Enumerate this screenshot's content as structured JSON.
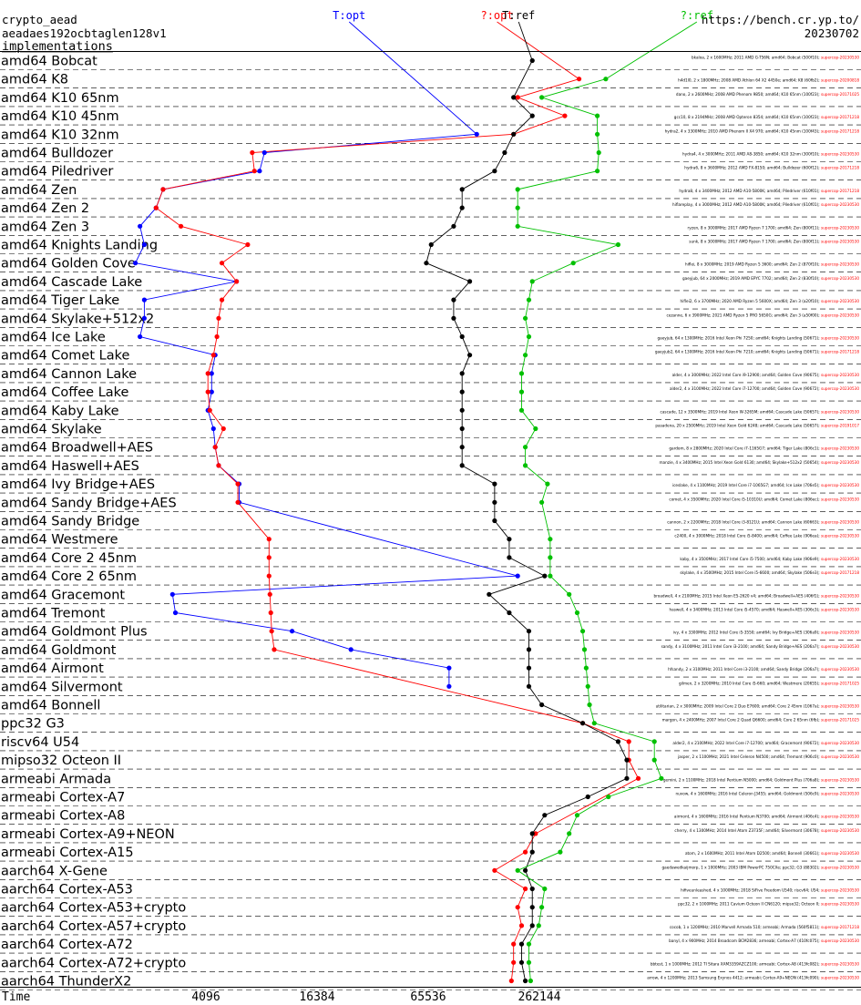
{
  "header": {
    "left_lines": [
      "crypto_aead",
      "aeadaes192ocbtaglen128v1"
    ],
    "implementations_link": "implementations",
    "right_lines": [
      "https://bench.cr.yp.to/",
      "20230702"
    ]
  },
  "chart_data": {
    "type": "line",
    "xlabel": "Time",
    "x_scale": "log2",
    "x_ticks": [
      4096,
      16384,
      65536,
      262144
    ],
    "series": [
      {
        "name": "T:opt",
        "color": "#0000ff"
      },
      {
        "name": "?:opt",
        "color": "#ff0000"
      },
      {
        "name": "T:ref",
        "color": "#000000"
      },
      {
        "name": "?:ref",
        "color": "#00c000"
      }
    ],
    "colors": {
      "grid": "#000000",
      "annotation_suffix": "#ff0000",
      "annotation_text": "#000000"
    },
    "categories": [
      {
        "label": "amd64 Bobcat",
        "t_opt": null,
        "q_opt": null,
        "t_ref": 240000,
        "q_ref": null
      },
      {
        "label": "amd64 K8",
        "t_opt": null,
        "q_opt": 430000,
        "t_ref": null,
        "q_ref": 600000
      },
      {
        "label": "amd64 K10 65nm",
        "t_opt": null,
        "q_opt": 200000,
        "t_ref": 190000,
        "q_ref": 270000
      },
      {
        "label": "amd64 K10 45nm",
        "t_opt": null,
        "q_opt": 360000,
        "t_ref": 240000,
        "q_ref": 540000
      },
      {
        "label": "amd64 K10 32nm",
        "t_opt": 120000,
        "q_opt": 190000,
        "t_ref": 190000,
        "q_ref": 540000
      },
      {
        "label": "amd64 Bulldozer",
        "t_opt": 8500,
        "q_opt": 7300,
        "t_ref": 170000,
        "q_ref": 550000
      },
      {
        "label": "amd64 Piledriver",
        "t_opt": 8000,
        "q_opt": 7500,
        "t_ref": 150000,
        "q_ref": 540000
      },
      {
        "label": "amd64 Zen",
        "t_opt": 2400,
        "q_opt": 2400,
        "t_ref": 100000,
        "q_ref": 200000
      },
      {
        "label": "amd64 Zen 2",
        "t_opt": 2200,
        "q_opt": 2200,
        "t_ref": 100000,
        "q_ref": 200000
      },
      {
        "label": "amd64 Zen 3",
        "t_opt": 1800,
        "q_opt": 3000,
        "t_ref": 90000,
        "q_ref": 200000
      },
      {
        "label": "amd64 Knights Landing",
        "t_opt": 1900,
        "q_opt": 6900,
        "t_ref": 68000,
        "q_ref": 700000
      },
      {
        "label": "amd64 Golden Cove",
        "t_opt": 1700,
        "q_opt": 5000,
        "t_ref": 64000,
        "q_ref": 400000
      },
      {
        "label": "amd64 Cascade Lake",
        "t_opt": 6000,
        "q_opt": 6000,
        "t_ref": 110000,
        "q_ref": 240000
      },
      {
        "label": "amd64 Tiger Lake",
        "t_opt": 1900,
        "q_opt": 5000,
        "t_ref": 90000,
        "q_ref": 230000
      },
      {
        "label": "amd64 Skylake+512x2",
        "t_opt": 1900,
        "q_opt": 4800,
        "t_ref": 90000,
        "q_ref": 220000
      },
      {
        "label": "amd64 Ice Lake",
        "t_opt": 1800,
        "q_opt": 4700,
        "t_ref": 100000,
        "q_ref": 230000
      },
      {
        "label": "amd64 Comet Lake",
        "t_opt": 4600,
        "q_opt": 4500,
        "t_ref": 110000,
        "q_ref": 220000
      },
      {
        "label": "amd64 Cannon Lake",
        "t_opt": 4400,
        "q_opt": 4200,
        "t_ref": 100000,
        "q_ref": 210000
      },
      {
        "label": "amd64 Coffee Lake",
        "t_opt": 4400,
        "q_opt": 4200,
        "t_ref": 100000,
        "q_ref": 210000
      },
      {
        "label": "amd64 Kaby Lake",
        "t_opt": 4200,
        "q_opt": 4300,
        "t_ref": 100000,
        "q_ref": 210000
      },
      {
        "label": "amd64 Skylake",
        "t_opt": 4500,
        "q_opt": 5100,
        "t_ref": 100000,
        "q_ref": 250000
      },
      {
        "label": "amd64 Broadwell+AES",
        "t_opt": 4600,
        "q_opt": 4600,
        "t_ref": 100000,
        "q_ref": 220000
      },
      {
        "label": "amd64 Haswell+AES",
        "t_opt": 4800,
        "q_opt": 4800,
        "t_ref": 100000,
        "q_ref": 220000
      },
      {
        "label": "amd64 Ivy Bridge+AES",
        "t_opt": 6200,
        "q_opt": 6100,
        "t_ref": 150000,
        "q_ref": 290000
      },
      {
        "label": "amd64 Sandy Bridge+AES",
        "t_opt": 6200,
        "q_opt": 6100,
        "t_ref": 150000,
        "q_ref": 270000
      },
      {
        "label": "amd64 Sandy Bridge",
        "t_opt": null,
        "q_opt": null,
        "t_ref": 150000,
        "q_ref": null
      },
      {
        "label": "amd64 Westmere",
        "t_opt": null,
        "q_opt": 9000,
        "t_ref": 180000,
        "q_ref": 300000
      },
      {
        "label": "amd64 Core 2 45nm",
        "t_opt": null,
        "q_opt": 9000,
        "t_ref": 180000,
        "q_ref": 300000
      },
      {
        "label": "amd64 Core 2 65nm",
        "t_opt": 200000,
        "q_opt": 9000,
        "t_ref": 280000,
        "q_ref": 300000
      },
      {
        "label": "amd64 Gracemont",
        "t_opt": 2700,
        "q_opt": 9100,
        "t_ref": 140000,
        "q_ref": 380000
      },
      {
        "label": "amd64 Tremont",
        "t_opt": 2800,
        "q_opt": 9200,
        "t_ref": 180000,
        "q_ref": 420000
      },
      {
        "label": "amd64 Goldmont Plus",
        "t_opt": 12000,
        "q_opt": 9300,
        "t_ref": 230000,
        "q_ref": 450000
      },
      {
        "label": "amd64 Goldmont",
        "t_opt": 25000,
        "q_opt": 9600,
        "t_ref": 230000,
        "q_ref": 460000
      },
      {
        "label": "amd64 Airmont",
        "t_opt": 85000,
        "q_opt": null,
        "t_ref": 230000,
        "q_ref": 470000
      },
      {
        "label": "amd64 Silvermont",
        "t_opt": 85000,
        "q_opt": null,
        "t_ref": 230000,
        "q_ref": 480000
      },
      {
        "label": "amd64 Bonnell",
        "t_opt": null,
        "q_opt": null,
        "t_ref": 270000,
        "q_ref": 490000
      },
      {
        "label": "ppc32 G3",
        "t_opt": null,
        "q_opt": 450000,
        "t_ref": 450000,
        "q_ref": 520000
      },
      {
        "label": "riscv64 U54",
        "t_opt": null,
        "q_opt": 800000,
        "t_ref": 700000,
        "q_ref": 1100000
      },
      {
        "label": "mipso32 Octeon II",
        "t_opt": null,
        "q_opt": 800000,
        "t_ref": 780000,
        "q_ref": 1100000
      },
      {
        "label": "armeabi Armada",
        "t_opt": null,
        "q_opt": 900000,
        "t_ref": 780000,
        "q_ref": 1200000
      },
      {
        "label": "armeabi Cortex-A7",
        "t_opt": null,
        "q_opt": null,
        "t_ref": 480000,
        "q_ref": 620000
      },
      {
        "label": "armeabi Cortex-A8",
        "t_opt": null,
        "q_opt": null,
        "t_ref": 280000,
        "q_ref": 420000
      },
      {
        "label": "armeabi Cortex-A9+NEON",
        "t_opt": null,
        "q_opt": 250000,
        "t_ref": 240000,
        "q_ref": 380000
      },
      {
        "label": "armeabi Cortex-A15",
        "t_opt": null,
        "q_opt": 220000,
        "t_ref": 240000,
        "q_ref": 340000
      },
      {
        "label": "aarch64 X-Gene",
        "t_opt": null,
        "q_opt": 150000,
        "t_ref": 220000,
        "q_ref": 200000
      },
      {
        "label": "aarch64 Cortex-A53",
        "t_opt": null,
        "q_opt": 220000,
        "t_ref": 240000,
        "q_ref": 280000
      },
      {
        "label": "aarch64 Cortex-A53+crypto",
        "t_opt": null,
        "q_opt": 200000,
        "t_ref": 240000,
        "q_ref": 270000
      },
      {
        "label": "aarch64 Cortex-A57+crypto",
        "t_opt": null,
        "q_opt": 210000,
        "t_ref": 240000,
        "q_ref": 260000
      },
      {
        "label": "aarch64 Cortex-A72",
        "t_opt": null,
        "q_opt": 190000,
        "t_ref": 210000,
        "q_ref": 230000
      },
      {
        "label": "aarch64 Cortex-A72+crypto",
        "t_opt": null,
        "q_opt": 190000,
        "t_ref": 210000,
        "q_ref": 230000
      },
      {
        "label": "aarch64 ThunderX2",
        "t_opt": null,
        "q_opt": 185000,
        "t_ref": 220000,
        "q_ref": 235000
      }
    ],
    "annotations": [
      {
        "text": "bkaloa, 2 x 1600MHz; 2011 AMD G-T56N; amd64; Bobcat (500f10);",
        "suffix": "supercop-20230530"
      },
      {
        "text": "h4d1l0, 2 x 1800MHz; 2008 AMD Athlon 64 X2 4450e; amd64; K8 (60fb2);",
        "suffix": "supercop-20200818"
      },
      {
        "text": "dano, 2 x 2600MHz; 2008 AMD Phenom 9850; amd64; K10 65nm (100f23);",
        "suffix": "supercop-20171025"
      },
      {
        "text": "gcc10, 8 x 2194MHz; 2008 AMD Opteron 8354; amd64; K10 65nm (100f23);",
        "suffix": "supercop-20171218"
      },
      {
        "text": "hydra2, 4 x 3300MHz; 2010 AMD Phenom II X4 970; amd64; K10 45nm (100f43);",
        "suffix": "supercop-20171218"
      },
      {
        "text": "hydra4, 4 x 3000MHz; 2011 AMD A8-3850; amd64; K10 32nm (300f10);",
        "suffix": "supercop-20230530"
      },
      {
        "text": "hydra6, 8 x 3600MHz; 2012 AMD FX-8150; amd64; Bulldozer (600f12);",
        "suffix": "supercop-20171218"
      },
      {
        "text": "hydra8, 4 x 3400MHz; 2012 AMD A10-5800K; amd64; Piledriver (610f01);",
        "suffix": "supercop-20171218"
      },
      {
        "text": "hiflareplay, 4 x 3000MHz; 2012 AMD A10-5800K; amd64; Piledriver (610f01);",
        "suffix": "supercop-20230530"
      },
      {
        "text": "ryzen, 8 x 3000MHz; 2017 AMD Ryzen 7 1700; amd64; Zen (800f11);",
        "suffix": "supercop-20230530"
      },
      {
        "text": "sunk, 8 x 3000MHz; 2017 AMD Ryzen 7 1700; amd64; Zen (800f11);",
        "suffix": "supercop-20230530"
      },
      {
        "text": "hiflei, 8 x 3000MHz; 2019 AMD Ryzen 5 3600; amd64; Zen 2 (870f10);",
        "suffix": "supercop-20230530"
      },
      {
        "text": "gaeyjub, 64 x 2000MHz; 2019 AMD EPYC 7702; amd64; Zen 2 (830f10);",
        "suffix": "supercop-20230530"
      },
      {
        "text": "hiflei2, 6 x 3700MHz; 2020 AMD Ryzen 5 5600X; amd64; Zen 3 (a20f10);",
        "suffix": "supercop-20230530"
      },
      {
        "text": "cezanne, 6 x 3900MHz; 2021 AMD Ryzen 5 PRO 5650G; amd64; Zen 3 (a50f00);",
        "suffix": "supercop-20230530"
      },
      {
        "text": "gaeyjub, 64 x 1300MHz; 2016 Intel Xeon Phi 7250; amd64; Knights Landing (50671);",
        "suffix": "supercop-20230530"
      },
      {
        "text": "gaeyjub2, 64 x 1300MHz; 2016 Intel Xeon Phi 7210; amd64; Knights Landing (50671);",
        "suffix": "supercop-20171218"
      },
      {
        "text": "alder, 4 x 3000MHz; 2022 Intel Core i9-12900; amd64; Golden Cove (90675);",
        "suffix": "supercop-20230530"
      },
      {
        "text": "alder2, 4 x 3100MHz; 2022 Intel Core i7-12700; amd64; Golden Cove (90672);",
        "suffix": "supercop-20230530"
      },
      {
        "text": "cascade, 12 x 3500MHz; 2019 Intel Xeon W-3265M; amd64; Cascade Lake (50657);",
        "suffix": "supercop-20230530"
      },
      {
        "text": "pasadena, 20 x 2500MHz; 2019 Intel Xeon Gold 6248; amd64; Cascade Lake (50657);",
        "suffix": "supercop-20191017"
      },
      {
        "text": "gardom, 8 x 2800MHz; 2020 Intel Core i7-1165G7; amd64; Tiger Lake (806c1);",
        "suffix": "supercop-20230530"
      },
      {
        "text": "manzie, 4 x 3400MHz; 2015 Intel Xeon Gold 6130; amd64; Skylake+512x2 (50654);",
        "suffix": "supercop-20230530"
      },
      {
        "text": "iceslake, 4 x 1100MHz; 2019 Intel Core i7-1065G7; amd64; Ice Lake (706e5);",
        "suffix": "supercop-20230530"
      },
      {
        "text": "comet, 4 x 3500MHz; 2020 Intel Core i5-10310U; amd64; Comet Lake (806ec);",
        "suffix": "supercop-20230530"
      },
      {
        "text": "cannon, 2 x 2200MHz; 2018 Intel Core i3-8121U; amd64; Cannon Lake (60663);",
        "suffix": "supercop-20230530"
      },
      {
        "text": "c2400, 4 x 3000MHz; 2018 Intel Core i5-8400; amd64; Coffee Lake (906ea);",
        "suffix": "supercop-20230530"
      },
      {
        "text": "kaby, 4 x 3500MHz; 2017 Intel Core i5-7500; amd64; Kaby Lake (906e9);",
        "suffix": "supercop-20230530"
      },
      {
        "text": "skylake, 4 x 3500MHz; 2015 Intel Core i5-6600; amd64; Skylake (506e3);",
        "suffix": "supercop-20171218"
      },
      {
        "text": "broadwell, 4 x 2100MHz; 2015 Intel Xeon E5-2620 v4; amd64; Broadwell+AES (406f1);",
        "suffix": "supercop-20230530"
      },
      {
        "text": "haswell, 4 x 3400MHz; 2013 Intel Core i5-4570; amd64; Haswell+AES (306c3);",
        "suffix": "supercop-20230530"
      },
      {
        "text": "ivy, 4 x 3300MHz; 2012 Intel Core i5-3550; amd64; Ivy Bridge+AES (306a9);",
        "suffix": "supercop-20230530"
      },
      {
        "text": "sandy, 4 x 3100MHz; 2011 Intel Core i3-2100; amd64; Sandy Bridge+AES (206a7);",
        "suffix": "supercop-20230530"
      },
      {
        "text": "hfsandy, 2 x 3100MHz; 2011 Intel Core i3-2100; amd64; Sandy Bridge (206a7);",
        "suffix": "supercop-20230530"
      },
      {
        "text": "gilmen, 2 x 3200MHz; 2010 Intel Core i5-660; amd64; Westmere (20655);",
        "suffix": "supercop-20171025"
      },
      {
        "text": "utilitarian, 2 x 3000MHz; 2009 Intel Core 2 Duo E7600; amd64; Core 2 45nm (1067a);",
        "suffix": "supercop-20230530"
      },
      {
        "text": "margon, 4 x 2400MHz; 2007 Intel Core 2 Quad Q6600; amd64; Core 2 65nm (6fb);",
        "suffix": "supercop-20171025"
      },
      {
        "text": "alder2, 4 x 2100MHz; 2022 Intel Core i7-12700; amd64; Gracemont (90672);",
        "suffix": "supercop-20230530"
      },
      {
        "text": "jasper, 2 x 1100MHz; 2021 Intel Celeron N4500; amd64; Tremont (906c0);",
        "suffix": "supercop-20230530"
      },
      {
        "text": "gemini, 2 x 1100MHz; 2018 Intel Pentium N5000; amd64; Goldmont Plus (706a8);",
        "suffix": "supercop-20230530"
      },
      {
        "text": "nuvow, 4 x 1600MHz; 2016 Intel Celeron J3455; amd64; Goldmont (506c9);",
        "suffix": "supercop-20230530"
      },
      {
        "text": "airmont, 4 x 1600MHz; 2016 Intel Pentium N3700; amd64; Airmont (406c4);",
        "suffix": "supercop-20230530"
      },
      {
        "text": "cherry, 4 x 1300MHz; 2014 Intel Atom Z3735F; amd64; Silvermont (30678);",
        "suffix": "supercop-20230530"
      },
      {
        "text": "atom, 2 x 1600MHz; 2011 Intel Atom D2500; amd64; Bonnell (30661);",
        "suffix": "supercop-20230530"
      },
      {
        "text": "gaedawedkaijmorp, 1 x 1000MHz; 2003 IBM PowerPC 750CXe; ppc32; G3 (88302);",
        "suffix": "supercop-20230530"
      },
      {
        "text": "hifiveunleashed, 4 x 1000MHz; 2018 SiFive Freedom U540; riscv64; U54;",
        "suffix": "supercop-20230530"
      },
      {
        "text": "ppc32, 2 x 1000MHz; 2011 Cavium Octeon II CN6120; mipso32; Octeon II;",
        "suffix": "supercop-20230530"
      },
      {
        "text": "cocob, 1 x 1200MHz; 2010 Marvell Armada 510; armeabi; Armada (560f5811);",
        "suffix": "supercop-20171218"
      },
      {
        "text": "banyl, 4 x 900MHz; 2014 Broadcom BCM2836; armeabi; Cortex-A7 (410fc075);",
        "suffix": "supercop-20230530"
      },
      {
        "text": "bbtest, 1 x 1000MHz; 2012 TI Sitara XAM3359AZCZ100; armeabi; Cortex-A8 (413fc082);",
        "suffix": "supercop-20230530"
      },
      {
        "text": "arrow, 4 x 1200MHz; 2013 Samsung Exynos 4412; armeabi; Cortex-A9+NEON (413fc090);",
        "suffix": "supercop-20230530"
      },
      {
        "text": "jetson, 4 x 2000MHz; 2014 NVIDIA Tegra K1; armeabi; Cortex-A15 (413fc0f3);",
        "suffix": "supercop-20171218"
      },
      {
        "text": "gcc113, 8 x 1600MHz; 2014 APM X-Gene 1; aarch64; X-Gene (500f0000);",
        "suffix": "supercop-20171218"
      },
      {
        "text": "pi3aplus, 4 x 1400MHz; 2018 Broadcom BCM2837B0; aarch64; Cortex-A53 (410fd034);",
        "suffix": "supercop-20230530"
      },
      {
        "text": "odroidc2, 4 x 1536MHz; 2016 Amlogic S905; aarch64; Cortex-A53+crypto (410fd034);",
        "suffix": "supercop-20230530"
      },
      {
        "text": "jetsontx1, 4 x 1734MHz; 2015 NVIDIA Tegra X1; aarch64; Cortex-A57+crypto (411fd071);",
        "suffix": "supercop-20191017"
      },
      {
        "text": "pi4b, 4 x 1500MHz; 2019 Broadcom BCM2711; aarch64; Cortex-A72 (410fd083);",
        "suffix": "supercop-20230530"
      },
      {
        "text": "a72, 2 x 2100MHz; 2016 Mediatek MT8173; aarch64; Cortex-A72+crypto (410fd080);",
        "suffix": "supercop-20171218"
      },
      {
        "text": "gcc-thunderx2, 64 x 2500MHz; 2018 Cavium ThunderX2 CN9980; aarch64; ThunderX2 (431f0af1);",
        "suffix": "supercop-20191017"
      }
    ]
  }
}
